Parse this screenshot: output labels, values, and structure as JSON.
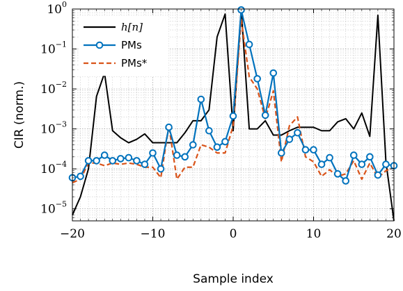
{
  "chart_data": {
    "type": "line",
    "title": "",
    "xlabel": "Sample index",
    "ylabel": "CIR (norm.)",
    "xlim": [
      -20,
      20
    ],
    "ylim": [
      5e-06,
      1
    ],
    "yscale": "log",
    "grid": true,
    "legend_position": "top-left",
    "x_ticks": [
      -20,
      -10,
      0,
      10,
      20
    ],
    "x_tick_labels": [
      "−20",
      "−10",
      "0",
      "10",
      "20"
    ],
    "y_ticks": [
      1e-05,
      0.0001,
      0.001,
      0.01,
      0.1,
      1
    ],
    "y_tick_labels": [
      {
        "base": "10",
        "exp": "−5"
      },
      {
        "base": "10",
        "exp": "−4"
      },
      {
        "base": "10",
        "exp": "−3"
      },
      {
        "base": "10",
        "exp": "−2"
      },
      {
        "base": "10",
        "exp": "−1"
      },
      {
        "base": "10",
        "exp": "0"
      }
    ],
    "series": [
      {
        "name": "h[n]",
        "color": "#000000",
        "style": "solid",
        "x": [
          -20,
          -19,
          -18,
          -17,
          -16,
          -15,
          -14,
          -13,
          -12,
          -11,
          -10,
          -9,
          -8,
          -7,
          -6,
          -5,
          -4,
          -3,
          -2,
          -1,
          0,
          1,
          2,
          3,
          4,
          5,
          6,
          7,
          8,
          9,
          10,
          11,
          12,
          13,
          14,
          15,
          16,
          17,
          18,
          19,
          20
        ],
        "y": [
          7e-06,
          2e-05,
          0.0001,
          0.0065,
          0.025,
          0.0009,
          0.0006,
          0.00045,
          0.00055,
          0.00075,
          0.00045,
          0.00045,
          0.00045,
          0.00045,
          0.0008,
          0.0016,
          0.0016,
          0.003,
          0.2,
          0.75,
          0.0009,
          1.0,
          0.001,
          0.001,
          0.0016,
          0.0007,
          0.0007,
          0.0009,
          0.0011,
          0.0011,
          0.0011,
          0.0009,
          0.0009,
          0.0015,
          0.0018,
          0.001,
          0.0025,
          0.00065,
          0.7,
          0.00015,
          5e-06
        ]
      },
      {
        "name": "PMs",
        "color": "#0072BD",
        "style": "solid-marker",
        "x": [
          -20,
          -19,
          -18,
          -17,
          -16,
          -15,
          -14,
          -13,
          -12,
          -11,
          -10,
          -9,
          -8,
          -7,
          -6,
          -5,
          -4,
          -3,
          -2,
          -1,
          0,
          1,
          2,
          3,
          4,
          5,
          6,
          7,
          8,
          9,
          10,
          11,
          12,
          13,
          14,
          15,
          16,
          17,
          18,
          19,
          20
        ],
        "y": [
          6e-05,
          6.5e-05,
          0.00016,
          0.00016,
          0.00022,
          0.00016,
          0.00018,
          0.00019,
          0.00016,
          0.00013,
          0.00025,
          0.0001,
          0.0011,
          0.00022,
          0.0002,
          0.0004,
          0.0055,
          0.0009,
          0.00035,
          0.00048,
          0.0021,
          0.95,
          0.13,
          0.018,
          0.0022,
          0.025,
          0.00025,
          0.00055,
          0.0008,
          0.0003,
          0.0003,
          0.00013,
          0.00019,
          7.5e-05,
          5e-05,
          0.00022,
          0.00013,
          0.0002,
          7e-05,
          0.00013,
          0.00012
        ]
      },
      {
        "name": "PMs*",
        "color": "#D95319",
        "style": "dashed",
        "x": [
          -20,
          -19,
          -18,
          -17,
          -16,
          -15,
          -14,
          -13,
          -12,
          -11,
          -10,
          -9,
          -8,
          -7,
          -6,
          -5,
          -4,
          -3,
          -2,
          -1,
          0,
          1,
          2,
          3,
          4,
          5,
          6,
          7,
          8,
          9,
          10,
          11,
          12,
          13,
          14,
          15,
          16,
          17,
          18,
          19,
          20
        ],
        "y": [
          4.5e-05,
          5.5e-05,
          0.00014,
          0.00014,
          0.00012,
          0.00014,
          0.00013,
          0.00014,
          0.00013,
          0.00011,
          0.00011,
          6e-05,
          0.0012,
          5.5e-05,
          0.00011,
          0.00011,
          0.0004,
          0.00035,
          0.00025,
          0.00025,
          0.0012,
          0.55,
          0.02,
          0.01,
          0.0018,
          0.009,
          0.00015,
          0.0012,
          0.002,
          0.0002,
          0.00015,
          6.5e-05,
          9.5e-05,
          6.5e-05,
          7.5e-05,
          0.00016,
          5.5e-05,
          0.00014,
          6e-05,
          9e-05,
          0.00011
        ]
      }
    ]
  }
}
